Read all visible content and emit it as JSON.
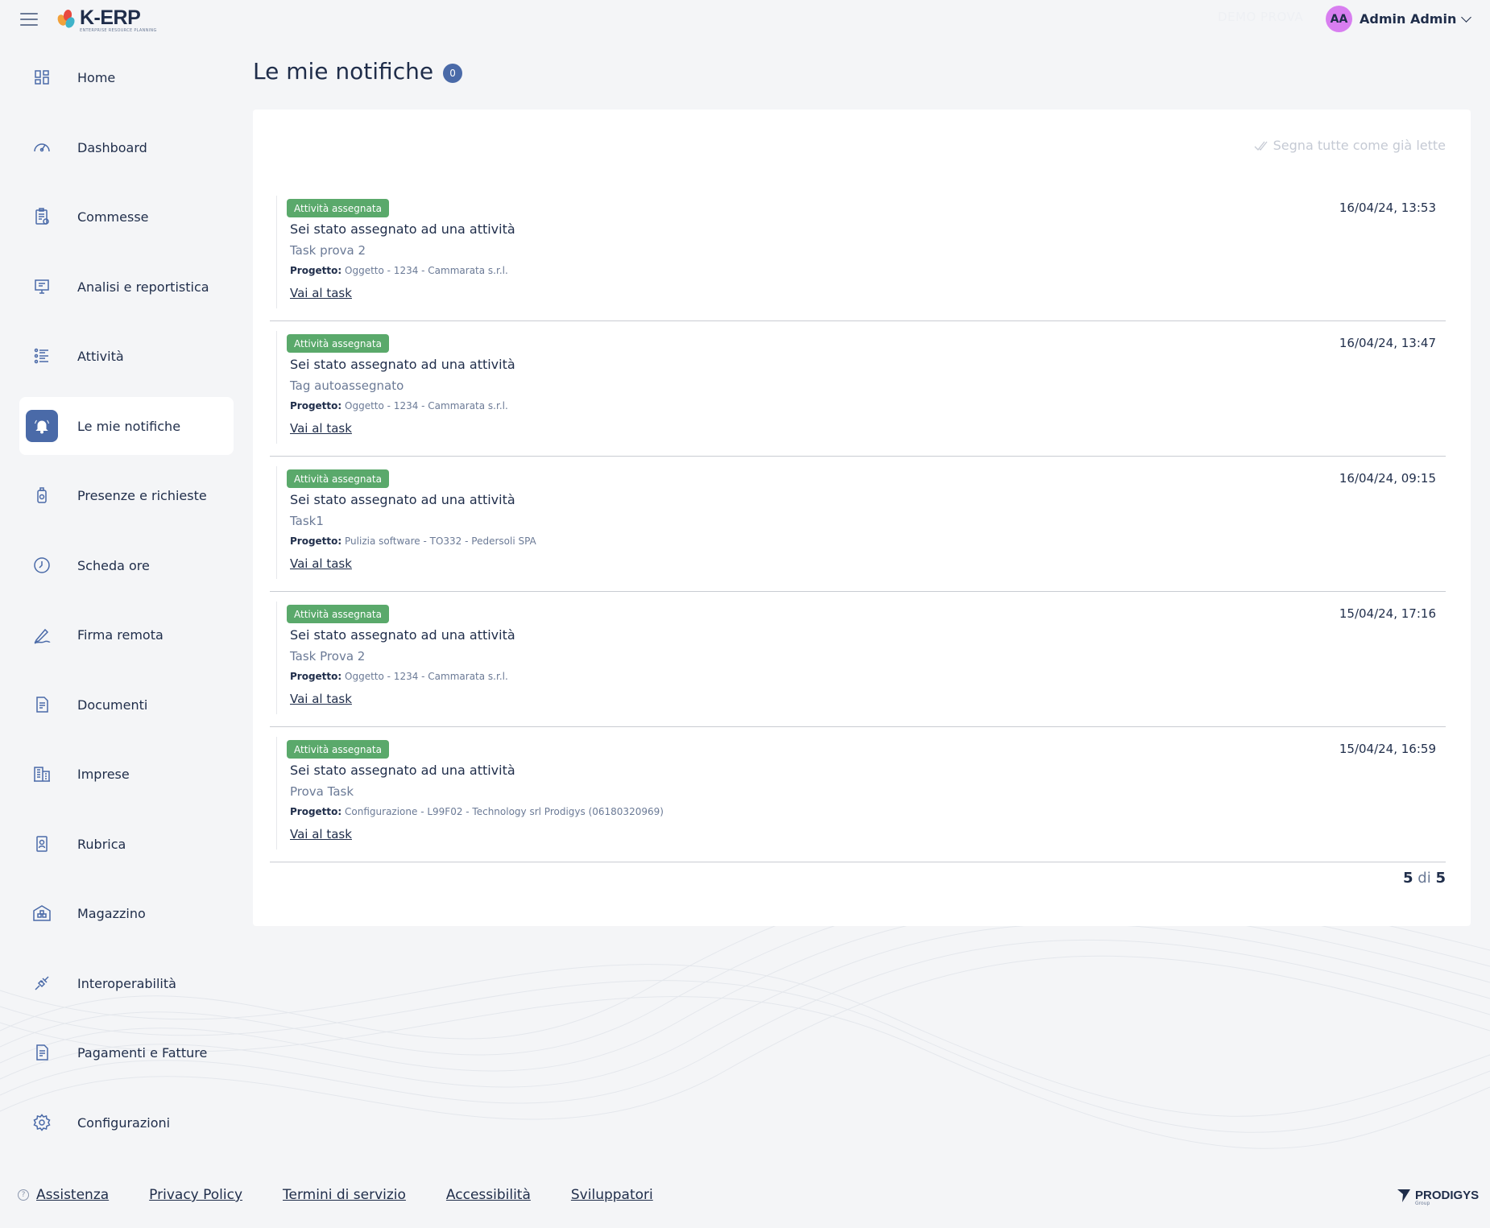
{
  "header": {
    "logo_name": "K-ERP",
    "logo_sub": "ENTERPRISE RESOURCE PLANNING",
    "env_label": "DEMO PROVA",
    "user": {
      "initials": "AA",
      "name": "Admin Admin"
    }
  },
  "sidebar": {
    "items": [
      {
        "label": "Home",
        "icon": "grid-icon"
      },
      {
        "label": "Dashboard",
        "icon": "gauge-icon"
      },
      {
        "label": "Commesse",
        "icon": "clipboard-icon"
      },
      {
        "label": "Analisi e reportistica",
        "icon": "presentation-icon"
      },
      {
        "label": "Attività",
        "icon": "list-icon"
      },
      {
        "label": "Le mie notifiche",
        "icon": "bell-icon",
        "active": true
      },
      {
        "label": "Presenze e richieste",
        "icon": "badge-icon"
      },
      {
        "label": "Scheda ore",
        "icon": "clock-icon"
      },
      {
        "label": "Firma remota",
        "icon": "pen-icon"
      },
      {
        "label": "Documenti",
        "icon": "document-icon"
      },
      {
        "label": "Imprese",
        "icon": "building-icon"
      },
      {
        "label": "Rubrica",
        "icon": "contacts-icon"
      },
      {
        "label": "Magazzino",
        "icon": "warehouse-icon"
      },
      {
        "label": "Interoperabilità",
        "icon": "plug-icon"
      },
      {
        "label": "Pagamenti e Fatture",
        "icon": "invoice-icon"
      },
      {
        "label": "Configurazioni",
        "icon": "gear-icon"
      }
    ]
  },
  "main": {
    "title": "Le mie notifiche",
    "unread_count": "0",
    "mark_all_label": "Segna tutte come già lette",
    "notifications": [
      {
        "tag": "Attività assegnata",
        "title": "Sei stato assegnato ad una attività",
        "task": "Task prova 2",
        "project_label": "Progetto:",
        "project": "Oggetto - 1234 - Cammarata s.r.l.",
        "link": "Vai al task",
        "date": "16/04/24, 13:53"
      },
      {
        "tag": "Attività assegnata",
        "title": "Sei stato assegnato ad una attività",
        "task": "Tag autoassegnato",
        "project_label": "Progetto:",
        "project": "Oggetto - 1234 - Cammarata s.r.l.",
        "link": "Vai al task",
        "date": "16/04/24, 13:47"
      },
      {
        "tag": "Attività assegnata",
        "title": "Sei stato assegnato ad una attività",
        "task": "Task1",
        "project_label": "Progetto:",
        "project": "Pulizia software - TO332 - Pedersoli SPA",
        "link": "Vai al task",
        "date": "16/04/24, 09:15"
      },
      {
        "tag": "Attività assegnata",
        "title": "Sei stato assegnato ad una attività",
        "task": "Task Prova 2",
        "project_label": "Progetto:",
        "project": "Oggetto - 1234 - Cammarata s.r.l.",
        "link": "Vai al task",
        "date": "15/04/24, 17:16"
      },
      {
        "tag": "Attività assegnata",
        "title": "Sei stato assegnato ad una attività",
        "task": "Prova Task",
        "project_label": "Progetto:",
        "project": "Configurazione - L99F02 - Technology srl Prodigys (06180320969)",
        "link": "Vai al task",
        "date": "15/04/24, 16:59"
      }
    ],
    "pager": {
      "shown": "5",
      "of": "di",
      "total": "5"
    }
  },
  "footer": {
    "links": [
      "Assistenza",
      "Privacy Policy",
      "Termini di servizio",
      "Accessibilità",
      "Sviluppatori"
    ],
    "brand": "PRODIGYS",
    "brand_sub": "Group"
  },
  "colors": {
    "primary": "#4a6aa8",
    "text": "#1f2d4a",
    "muted": "#6b7a96",
    "tag_green": "#5aa96b",
    "avatar": "#d87ef0"
  }
}
